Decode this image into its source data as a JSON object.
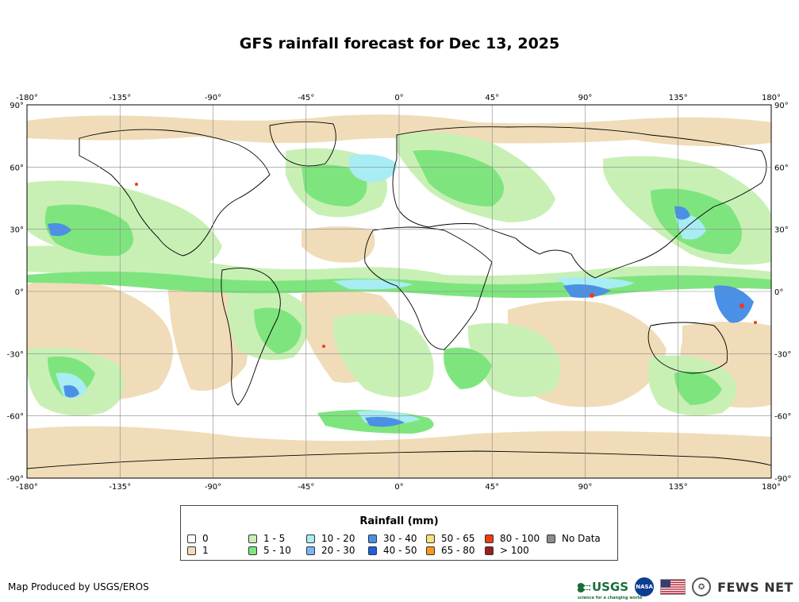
{
  "title": "GFS rainfall forecast for Dec 13, 2025",
  "map": {
    "lon_ticks": [
      "-180°",
      "-135°",
      "-90°",
      "-45°",
      "0°",
      "45°",
      "90°",
      "135°",
      "180°"
    ],
    "lat_ticks": [
      "90°",
      "60°",
      "30°",
      "0°",
      "-30°",
      "-60°",
      "-90°"
    ],
    "lon_range": [
      -180,
      180
    ],
    "lat_range": [
      -90,
      90
    ],
    "projection": "equirectangular"
  },
  "legend": {
    "title": "Rainfall (mm)",
    "items": [
      {
        "label": "0",
        "color": "#ffffff"
      },
      {
        "label": "1",
        "color": "#f0dcb8"
      },
      {
        "label": "1 - 5",
        "color": "#c8f0b4"
      },
      {
        "label": "5 - 10",
        "color": "#7ee57e"
      },
      {
        "label": "10 - 20",
        "color": "#a8ecf4"
      },
      {
        "label": "20 - 30",
        "color": "#78b8f2"
      },
      {
        "label": "30 - 40",
        "color": "#4a90e6"
      },
      {
        "label": "40 - 50",
        "color": "#1f5fe0"
      },
      {
        "label": "50 - 65",
        "color": "#fae07a"
      },
      {
        "label": "65 - 80",
        "color": "#f59a1a"
      },
      {
        "label": "80 - 100",
        "color": "#f03c14"
      },
      {
        "label": "> 100",
        "color": "#9a1e1e"
      },
      {
        "label": "No Data",
        "color": "#8c8c8c"
      }
    ]
  },
  "credit": "Map Produced by USGS/EROS",
  "logos": {
    "usgs": "USGS",
    "usgs_tagline": "science for a changing world",
    "nasa": "NASA",
    "fews": "FEWS NET"
  }
}
